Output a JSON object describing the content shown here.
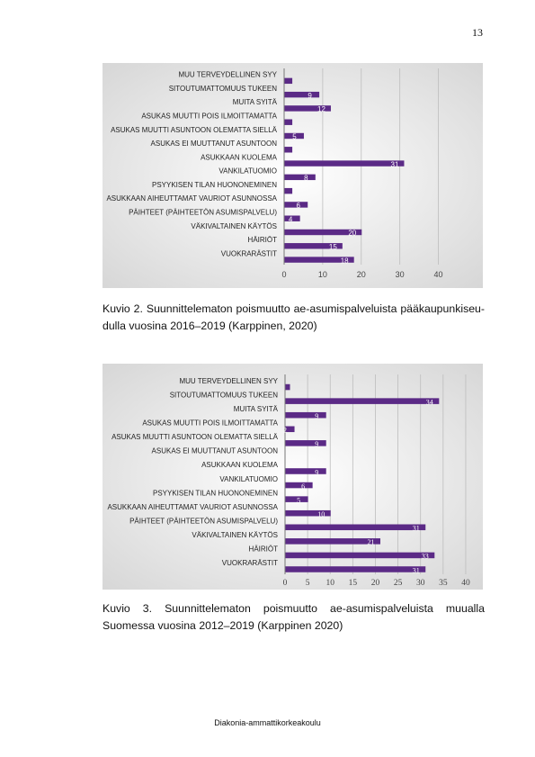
{
  "page": {
    "page_number": "13",
    "footer": "Diakonia-ammattikorkeakoulu"
  },
  "figures": [
    {
      "caption": "Kuvio 2. Suunnittelematon poismuutto ae-asumispalveluista pääkaupunkiseu-dulla vuosina 2016–2019 (Karppinen, 2020)"
    },
    {
      "caption": "Kuvio 3. Suunnittelematon poismuutto ae-asumispalveluista muualla Suomessa vuosina 2012–2019 (Karppinen 2020)"
    }
  ],
  "chart_data": [
    {
      "type": "bar",
      "orientation": "horizontal",
      "title": "",
      "xlabel": "",
      "ylabel": "",
      "categories": [
        "MUU TERVEYDELLINEN SYY",
        "SITOUTUMATTOMUUS TUKEEN",
        "MUITA SYITÄ",
        "ASUKAS MUUTTI POIS ILMOITTAMATTA",
        "ASUKAS MUUTTI ASUNTOON OLEMATTA SIELLÄ",
        "ASUKAS EI MUUTTANUT ASUNTOON",
        "ASUKKAAN KUOLEMA",
        "VANKILATUOMIO",
        "PSYYKISEN TILAN HUONONEMINEN",
        "ASUKKAAN AIHEUTTAMAT VAURIOT ASUNNOSSA",
        "PÄIHTEET (PÄIHTEETÖN ASUMISPALVELU)",
        "VÄKIVALTAINEN KÄYTÖS",
        "HÄIRIÖT",
        "VUOKRARÄSTIT"
      ],
      "values": [
        2,
        9,
        12,
        2,
        5,
        2,
        31,
        8,
        2,
        6,
        4,
        20,
        15,
        18
      ],
      "data_labels": [
        "",
        "9",
        "12",
        "",
        "5",
        "",
        "31",
        "8",
        "",
        "6",
        "4",
        "20",
        "15",
        "18"
      ],
      "xlim": [
        0,
        45
      ],
      "xticks": [
        "0",
        "10",
        "20",
        "30",
        "40"
      ],
      "tick_values": [
        0,
        10,
        20,
        30,
        40
      ],
      "grid": true,
      "legend": "none",
      "bar_color": "#5b2a86",
      "label_color": "#ffffff"
    },
    {
      "type": "bar",
      "orientation": "horizontal",
      "title": "",
      "xlabel": "",
      "ylabel": "",
      "categories": [
        "MUU TERVEYDELLINEN SYY",
        "SITOUTUMATTOMUUS TUKEEN",
        "MUITA SYITÄ",
        "ASUKAS MUUTTI POIS ILMOITTAMATTA",
        "ASUKAS MUUTTI ASUNTOON OLEMATTA SIELLÄ",
        "ASUKAS EI MUUTTANUT ASUNTOON",
        "ASUKKAAN KUOLEMA",
        "VANKILATUOMIO",
        "PSYYKISEN TILAN HUONONEMINEN",
        "ASUKKAAN AIHEUTTAMAT VAURIOT ASUNNOSSA",
        "PÄIHTEET (PÄIHTEETÖN ASUMISPALVELU)",
        "VÄKIVALTAINEN KÄYTÖS",
        "HÄIRIÖT",
        "VUOKRARÄSTIT"
      ],
      "values": [
        1,
        34,
        9,
        2,
        9,
        0,
        9,
        6,
        5,
        10,
        31,
        21,
        33,
        31
      ],
      "data_labels": [
        "",
        "34",
        "9",
        "2",
        "9",
        "",
        "9",
        "6",
        "5",
        "10",
        "31",
        "21",
        "33",
        "31"
      ],
      "xlim": [
        0,
        42
      ],
      "xticks": [
        "0",
        "5",
        "10",
        "15",
        "20",
        "25",
        "30",
        "35",
        "40"
      ],
      "tick_values": [
        0,
        5,
        10,
        15,
        20,
        25,
        30,
        35,
        40
      ],
      "grid": true,
      "legend": "none",
      "bar_color": "#5b2a86",
      "label_color": "#ffffff"
    }
  ]
}
